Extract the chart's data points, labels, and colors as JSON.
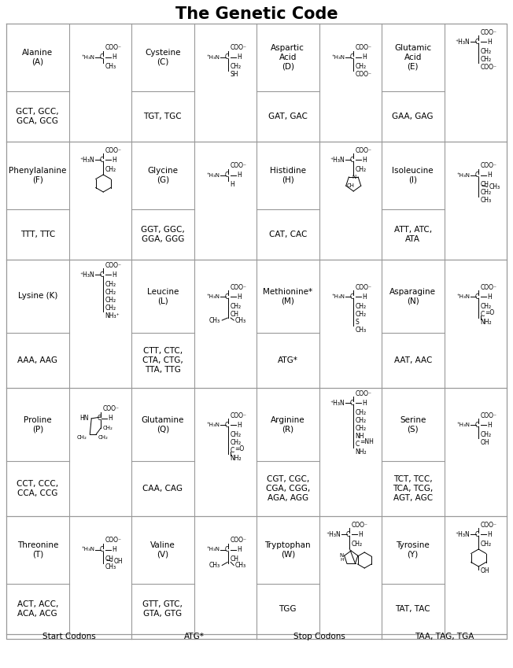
{
  "title": "The Genetic Code",
  "title_fontsize": 15,
  "title_fontweight": "bold",
  "background_color": "#ffffff",
  "grid_color": "#999999",
  "rows": [
    {
      "cells": [
        {
          "name": "Alanine\n(A)",
          "codons": "GCT, GCC,\nGCA, GCG",
          "structure": "alanine"
        },
        {
          "name": "Cysteine\n(C)",
          "codons": "TGT, TGC",
          "structure": "cysteine"
        },
        {
          "name": "Aspartic\nAcid\n(D)",
          "codons": "GAT, GAC",
          "structure": "aspartic_acid"
        },
        {
          "name": "Glutamic\nAcid\n(E)",
          "codons": "GAA, GAG",
          "structure": "glutamic_acid"
        }
      ]
    },
    {
      "cells": [
        {
          "name": "Phenylalanine\n(F)",
          "codons": "TTT, TTC",
          "structure": "phenylalanine"
        },
        {
          "name": "Glycine\n(G)",
          "codons": "GGT, GGC,\nGGA, GGG",
          "structure": "glycine"
        },
        {
          "name": "Histidine\n(H)",
          "codons": "CAT, CAC",
          "structure": "histidine"
        },
        {
          "name": "Isoleucine\n(I)",
          "codons": "ATT, ATC,\nATA",
          "structure": "isoleucine"
        }
      ]
    },
    {
      "cells": [
        {
          "name": "Lysine (K)",
          "codons": "AAA, AAG",
          "structure": "lysine"
        },
        {
          "name": "Leucine\n(L)",
          "codons": "CTT, CTC,\nCTA, CTG,\nTTA, TTG",
          "structure": "leucine"
        },
        {
          "name": "Methionine*\n(M)",
          "codons": "ATG*",
          "structure": "methionine"
        },
        {
          "name": "Asparagine\n(N)",
          "codons": "AAT, AAC",
          "structure": "asparagine"
        }
      ]
    },
    {
      "cells": [
        {
          "name": "Proline\n(P)",
          "codons": "CCT, CCC,\nCCA, CCG",
          "structure": "proline"
        },
        {
          "name": "Glutamine\n(Q)",
          "codons": "CAA, CAG",
          "structure": "glutamine"
        },
        {
          "name": "Arginine\n(R)",
          "codons": "CGT, CGC,\nCGA, CGG,\nAGA, AGG",
          "structure": "arginine"
        },
        {
          "name": "Serine\n(S)",
          "codons": "TCT, TCC,\nTCA, TCG,\nAGT, AGC",
          "structure": "serine"
        }
      ]
    },
    {
      "cells": [
        {
          "name": "Threonine\n(T)",
          "codons": "ACT, ACC,\nACA, ACG",
          "structure": "threonine"
        },
        {
          "name": "Valine\n(V)",
          "codons": "GTT, GTC,\nGTA, GTG",
          "structure": "valine"
        },
        {
          "name": "Tryptophan\n(W)",
          "codons": "TGG",
          "structure": "tryptophan"
        },
        {
          "name": "Tyrosine\n(Y)",
          "codons": "TAT, TAC",
          "structure": "tyrosine"
        }
      ]
    }
  ],
  "footer_labels": [
    "Start Codons",
    "ATG*",
    "Stop Codons",
    "TAA, TAG, TGA"
  ]
}
